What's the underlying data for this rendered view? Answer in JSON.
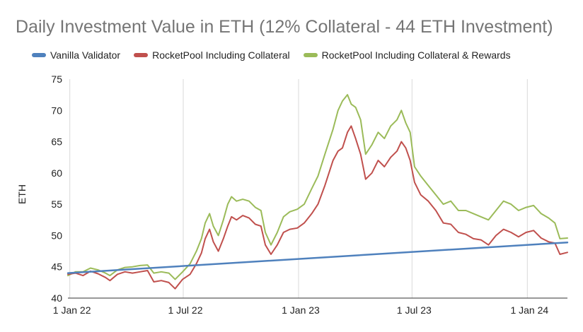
{
  "chart_data": {
    "type": "line",
    "title": "Daily Investment Value in ETH (12% Collateral - 44 ETH Investment)",
    "ylabel": "ETH",
    "xlabel": "",
    "ylim": [
      40,
      75
    ],
    "yticks": [
      40,
      45,
      50,
      55,
      60,
      65,
      70,
      75
    ],
    "xlim": [
      "2021-12-29",
      "2024-03-05"
    ],
    "xticks": [
      {
        "date": "2022-01-01",
        "label": "1 Jan 22"
      },
      {
        "date": "2022-07-01",
        "label": "1 Jul 22"
      },
      {
        "date": "2023-01-01",
        "label": "1 Jan 23"
      },
      {
        "date": "2023-07-01",
        "label": "1 Jul 23"
      },
      {
        "date": "2024-01-01",
        "label": "1 Jan 24"
      }
    ],
    "grid": "vertical",
    "legend": "top",
    "series": [
      {
        "name": "Vanilla Validator",
        "color": "#4F81BD",
        "points": [
          [
            "2021-12-29",
            44.0
          ],
          [
            "2024-03-05",
            48.9
          ]
        ]
      },
      {
        "name": "RocketPool Including Collateral",
        "color": "#C0504D",
        "points": [
          [
            "2021-12-29",
            43.8
          ],
          [
            "2022-01-10",
            44.0
          ],
          [
            "2022-01-22",
            43.6
          ],
          [
            "2022-02-03",
            44.3
          ],
          [
            "2022-02-15",
            43.9
          ],
          [
            "2022-02-27",
            43.3
          ],
          [
            "2022-03-06",
            42.8
          ],
          [
            "2022-03-18",
            43.8
          ],
          [
            "2022-03-30",
            44.2
          ],
          [
            "2022-04-11",
            44.0
          ],
          [
            "2022-04-23",
            44.2
          ],
          [
            "2022-05-05",
            44.4
          ],
          [
            "2022-05-15",
            42.6
          ],
          [
            "2022-05-27",
            42.8
          ],
          [
            "2022-06-08",
            42.5
          ],
          [
            "2022-06-18",
            41.5
          ],
          [
            "2022-06-30",
            43.0
          ],
          [
            "2022-07-12",
            43.8
          ],
          [
            "2022-07-22",
            45.5
          ],
          [
            "2022-07-30",
            47.2
          ],
          [
            "2022-08-05",
            49.5
          ],
          [
            "2022-08-12",
            51.0
          ],
          [
            "2022-08-18",
            49.0
          ],
          [
            "2022-08-26",
            47.5
          ],
          [
            "2022-09-03",
            49.5
          ],
          [
            "2022-09-10",
            51.5
          ],
          [
            "2022-09-16",
            53.0
          ],
          [
            "2022-09-24",
            52.5
          ],
          [
            "2022-10-04",
            53.2
          ],
          [
            "2022-10-14",
            52.8
          ],
          [
            "2022-10-24",
            51.8
          ],
          [
            "2022-11-02",
            51.5
          ],
          [
            "2022-11-09",
            48.5
          ],
          [
            "2022-11-18",
            47.0
          ],
          [
            "2022-11-28",
            48.5
          ],
          [
            "2022-12-08",
            50.5
          ],
          [
            "2022-12-18",
            51.0
          ],
          [
            "2022-12-30",
            51.2
          ],
          [
            "2023-01-10",
            52.0
          ],
          [
            "2023-01-22",
            53.5
          ],
          [
            "2023-02-01",
            55.0
          ],
          [
            "2023-02-12",
            58.0
          ],
          [
            "2023-02-25",
            62.0
          ],
          [
            "2023-03-05",
            63.5
          ],
          [
            "2023-03-12",
            64.0
          ],
          [
            "2023-03-20",
            66.5
          ],
          [
            "2023-03-26",
            67.5
          ],
          [
            "2023-04-02",
            65.5
          ],
          [
            "2023-04-10",
            63.0
          ],
          [
            "2023-04-18",
            59.0
          ],
          [
            "2023-04-28",
            60.0
          ],
          [
            "2023-05-08",
            62.0
          ],
          [
            "2023-05-18",
            61.0
          ],
          [
            "2023-05-28",
            62.5
          ],
          [
            "2023-06-07",
            63.5
          ],
          [
            "2023-06-14",
            65.0
          ],
          [
            "2023-06-21",
            64.0
          ],
          [
            "2023-06-28",
            62.0
          ],
          [
            "2023-07-05",
            58.5
          ],
          [
            "2023-07-15",
            56.5
          ],
          [
            "2023-07-27",
            55.5
          ],
          [
            "2023-08-08",
            54.0
          ],
          [
            "2023-08-20",
            52.0
          ],
          [
            "2023-09-01",
            51.8
          ],
          [
            "2023-09-13",
            50.5
          ],
          [
            "2023-09-25",
            50.2
          ],
          [
            "2023-10-07",
            49.5
          ],
          [
            "2023-10-19",
            49.3
          ],
          [
            "2023-10-31",
            48.5
          ],
          [
            "2023-11-12",
            50.0
          ],
          [
            "2023-11-24",
            51.0
          ],
          [
            "2023-12-06",
            50.5
          ],
          [
            "2023-12-18",
            49.8
          ],
          [
            "2023-12-30",
            50.5
          ],
          [
            "2024-01-11",
            50.8
          ],
          [
            "2024-01-23",
            49.6
          ],
          [
            "2024-02-04",
            49.0
          ],
          [
            "2024-02-14",
            48.8
          ],
          [
            "2024-02-22",
            47.0
          ],
          [
            "2024-03-05",
            47.3
          ]
        ]
      },
      {
        "name": "RocketPool Including Collateral & Rewards",
        "color": "#9BBB59",
        "points": [
          [
            "2021-12-29",
            43.6
          ],
          [
            "2022-01-10",
            44.2
          ],
          [
            "2022-01-22",
            44.2
          ],
          [
            "2022-02-03",
            44.8
          ],
          [
            "2022-02-15",
            44.5
          ],
          [
            "2022-02-27",
            44.0
          ],
          [
            "2022-03-06",
            43.6
          ],
          [
            "2022-03-18",
            44.5
          ],
          [
            "2022-03-30",
            44.9
          ],
          [
            "2022-04-11",
            45.0
          ],
          [
            "2022-04-23",
            45.2
          ],
          [
            "2022-05-05",
            45.3
          ],
          [
            "2022-05-15",
            44.0
          ],
          [
            "2022-05-27",
            44.2
          ],
          [
            "2022-06-08",
            44.0
          ],
          [
            "2022-06-18",
            43.0
          ],
          [
            "2022-06-30",
            44.2
          ],
          [
            "2022-07-12",
            45.5
          ],
          [
            "2022-07-22",
            47.5
          ],
          [
            "2022-07-30",
            49.5
          ],
          [
            "2022-08-05",
            52.0
          ],
          [
            "2022-08-12",
            53.5
          ],
          [
            "2022-08-18",
            51.5
          ],
          [
            "2022-08-26",
            50.0
          ],
          [
            "2022-09-03",
            52.5
          ],
          [
            "2022-09-10",
            55.0
          ],
          [
            "2022-09-16",
            56.2
          ],
          [
            "2022-09-24",
            55.5
          ],
          [
            "2022-10-04",
            55.8
          ],
          [
            "2022-10-14",
            55.5
          ],
          [
            "2022-10-24",
            54.5
          ],
          [
            "2022-11-02",
            54.0
          ],
          [
            "2022-11-09",
            50.5
          ],
          [
            "2022-11-18",
            48.5
          ],
          [
            "2022-11-28",
            50.5
          ],
          [
            "2022-12-08",
            53.0
          ],
          [
            "2022-12-18",
            53.8
          ],
          [
            "2022-12-30",
            54.2
          ],
          [
            "2023-01-10",
            55.0
          ],
          [
            "2023-01-22",
            57.5
          ],
          [
            "2023-02-01",
            59.5
          ],
          [
            "2023-02-12",
            63.0
          ],
          [
            "2023-02-25",
            67.0
          ],
          [
            "2023-03-05",
            70.0
          ],
          [
            "2023-03-12",
            71.5
          ],
          [
            "2023-03-20",
            72.5
          ],
          [
            "2023-03-26",
            71.0
          ],
          [
            "2023-04-02",
            70.5
          ],
          [
            "2023-04-10",
            68.5
          ],
          [
            "2023-04-18",
            63.0
          ],
          [
            "2023-04-28",
            64.5
          ],
          [
            "2023-05-08",
            66.5
          ],
          [
            "2023-05-18",
            65.5
          ],
          [
            "2023-05-28",
            67.5
          ],
          [
            "2023-06-07",
            68.5
          ],
          [
            "2023-06-14",
            70.0
          ],
          [
            "2023-06-21",
            68.0
          ],
          [
            "2023-06-28",
            66.5
          ],
          [
            "2023-07-05",
            61.0
          ],
          [
            "2023-07-15",
            59.5
          ],
          [
            "2023-07-27",
            58.0
          ],
          [
            "2023-08-08",
            56.5
          ],
          [
            "2023-08-20",
            55.0
          ],
          [
            "2023-09-01",
            55.5
          ],
          [
            "2023-09-13",
            54.0
          ],
          [
            "2023-09-25",
            54.0
          ],
          [
            "2023-10-07",
            53.5
          ],
          [
            "2023-10-19",
            53.0
          ],
          [
            "2023-10-31",
            52.5
          ],
          [
            "2023-11-12",
            54.0
          ],
          [
            "2023-11-24",
            55.5
          ],
          [
            "2023-12-06",
            55.0
          ],
          [
            "2023-12-18",
            54.0
          ],
          [
            "2023-12-30",
            54.5
          ],
          [
            "2024-01-11",
            54.8
          ],
          [
            "2024-01-23",
            53.5
          ],
          [
            "2024-02-04",
            52.8
          ],
          [
            "2024-02-14",
            52.0
          ],
          [
            "2024-02-22",
            49.5
          ],
          [
            "2024-03-05",
            49.6
          ]
        ]
      }
    ]
  }
}
